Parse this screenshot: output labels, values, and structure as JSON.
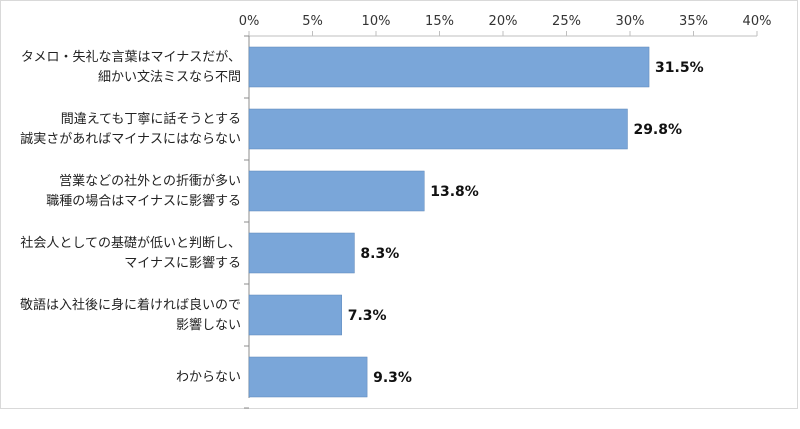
{
  "chart_data": {
    "type": "bar",
    "orientation": "horizontal",
    "categories": [
      [
        "タメロ・失礼な言葉はマイナスだが、",
        "細かい文法ミスなら不問"
      ],
      [
        "間違えても丁寧に話そうとする",
        "誠実さがあればマイナスにはならない"
      ],
      [
        "営業などの社外との折衝が多い",
        "職種の場合はマイナスに影響する"
      ],
      [
        "社会人としての基礎が低いと判断し、",
        "マイナスに影響する"
      ],
      [
        "敬語は入社後に身に着ければ良いので",
        "影響しない"
      ],
      [
        "わからない"
      ]
    ],
    "values": [
      31.5,
      29.8,
      13.8,
      8.3,
      7.3,
      9.3
    ],
    "value_labels": [
      "31.5%",
      "29.8%",
      "13.8%",
      "8.3%",
      "7.3%",
      "9.3%"
    ],
    "x_ticks": [
      "0%",
      "5%",
      "10%",
      "15%",
      "20%",
      "25%",
      "30%",
      "35%",
      "40%"
    ],
    "xlim": [
      0,
      40
    ],
    "tick_position": "top",
    "grid": false,
    "bar_color": "#7aa6d9",
    "bar_border_color": "#5b86b8"
  }
}
